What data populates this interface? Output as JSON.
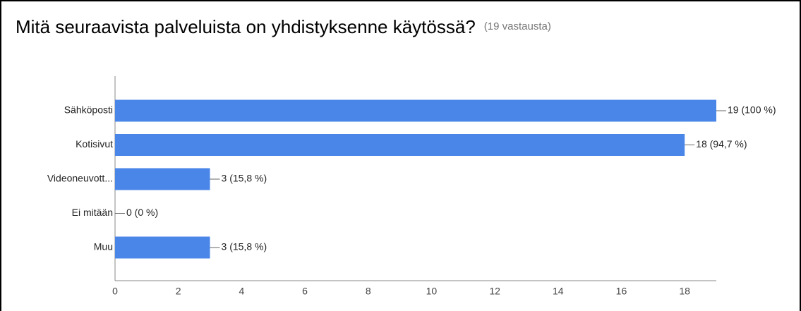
{
  "chart_data": {
    "type": "bar",
    "orientation": "horizontal",
    "title": "Mitä seuraavista palveluista on yhdistyksenne käytössä?",
    "subtitle": "(19 vastausta)",
    "categories": [
      "Sähköposti",
      "Kotisivut",
      "Videoneuvott...",
      "Ei mitään",
      "Muu"
    ],
    "values": [
      19,
      18,
      3,
      0,
      3
    ],
    "value_labels": [
      "19 (100 %)",
      "18 (94,7 %)",
      "3 (15,8 %)",
      "0 (0 %)",
      "3 (15,8 %)"
    ],
    "color": "#4a86e8",
    "xlim": [
      0,
      19
    ],
    "xticks": [
      0,
      2,
      4,
      6,
      8,
      10,
      12,
      14,
      16,
      18
    ]
  }
}
